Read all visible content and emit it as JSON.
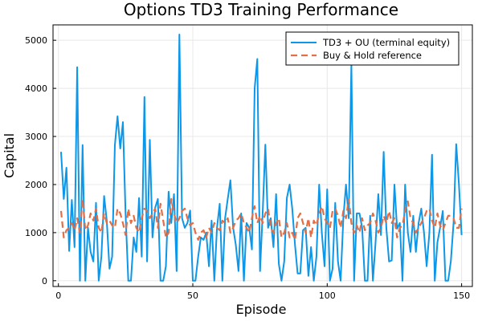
{
  "chart_data": {
    "type": "line",
    "title": "Options TD3 Training Performance",
    "xlabel": "Episode",
    "ylabel": "Capital",
    "xlim": [
      -2,
      154
    ],
    "ylim": [
      -120,
      5320
    ],
    "xticks": [
      0,
      50,
      100,
      150
    ],
    "yticks": [
      0,
      1000,
      2000,
      3000,
      4000,
      5000
    ],
    "grid": true,
    "legend_position": "top-right",
    "series": [
      {
        "name": "TD3 + OU (terminal equity)",
        "style": "solid",
        "color": "#0d97e8",
        "x": [
          1,
          2,
          3,
          4,
          5,
          6,
          7,
          8,
          9,
          10,
          11,
          12,
          13,
          14,
          15,
          16,
          17,
          18,
          19,
          20,
          21,
          22,
          23,
          24,
          25,
          26,
          27,
          28,
          29,
          30,
          31,
          32,
          33,
          34,
          35,
          36,
          37,
          38,
          39,
          40,
          41,
          42,
          43,
          44,
          45,
          46,
          47,
          48,
          49,
          50,
          51,
          52,
          53,
          54,
          55,
          56,
          57,
          58,
          59,
          60,
          61,
          62,
          63,
          64,
          65,
          66,
          67,
          68,
          69,
          70,
          71,
          72,
          73,
          74,
          75,
          76,
          77,
          78,
          79,
          80,
          81,
          82,
          83,
          84,
          85,
          86,
          87,
          88,
          89,
          90,
          91,
          92,
          93,
          94,
          95,
          96,
          97,
          98,
          99,
          100,
          101,
          102,
          103,
          104,
          105,
          106,
          107,
          108,
          109,
          110,
          111,
          112,
          113,
          114,
          115,
          116,
          117,
          118,
          119,
          120,
          121,
          122,
          123,
          124,
          125,
          126,
          127,
          128,
          129,
          130,
          131,
          132,
          133,
          134,
          135,
          136,
          137,
          138,
          139,
          140,
          141,
          142,
          143,
          144,
          145,
          146,
          147,
          148,
          149,
          150
        ],
        "y": [
          2680,
          1700,
          2350,
          620,
          1680,
          700,
          4440,
          0,
          2820,
          0,
          1100,
          600,
          400,
          1620,
          0,
          500,
          1760,
          1250,
          250,
          500,
          2820,
          3420,
          2750,
          3300,
          1400,
          0,
          0,
          900,
          600,
          1720,
          500,
          3820,
          400,
          2930,
          900,
          1520,
          1700,
          0,
          0,
          300,
          1850,
          1200,
          1800,
          200,
          5120,
          1300,
          1100,
          1200,
          1460,
          0,
          0,
          500,
          900,
          850,
          1000,
          300,
          1250,
          0,
          1100,
          1600,
          0,
          1300,
          1700,
          2090,
          1100,
          750,
          200,
          1400,
          0,
          1200,
          1100,
          650,
          4000,
          4610,
          200,
          1420,
          2830,
          1100,
          1300,
          700,
          1800,
          350,
          0,
          400,
          1720,
          2000,
          1500,
          750,
          150,
          150,
          1050,
          1100,
          100,
          700,
          0,
          500,
          2000,
          1000,
          300,
          1900,
          0,
          250,
          1620,
          400,
          0,
          1300,
          2000,
          1300,
          4500,
          0,
          1400,
          1400,
          1100,
          0,
          0,
          1350,
          0,
          800,
          1800,
          950,
          2680,
          1100,
          400,
          420,
          2000,
          1080,
          1200,
          0,
          2000,
          1000,
          600,
          1350,
          600,
          1200,
          1500,
          1000,
          300,
          1000,
          2620,
          0,
          800,
          1100,
          1450,
          0,
          0,
          400,
          1200,
          2840,
          2000,
          950
        ]
      },
      {
        "name": "Buy & Hold reference",
        "style": "dashed",
        "color": "#e26f46",
        "x": [
          1,
          2,
          3,
          4,
          5,
          6,
          7,
          8,
          9,
          10,
          11,
          12,
          13,
          14,
          15,
          16,
          17,
          18,
          19,
          20,
          21,
          22,
          23,
          24,
          25,
          26,
          27,
          28,
          29,
          30,
          31,
          32,
          33,
          34,
          35,
          36,
          37,
          38,
          39,
          40,
          41,
          42,
          43,
          44,
          45,
          46,
          47,
          48,
          49,
          50,
          51,
          52,
          53,
          54,
          55,
          56,
          57,
          58,
          59,
          60,
          61,
          62,
          63,
          64,
          65,
          66,
          67,
          68,
          69,
          70,
          71,
          72,
          73,
          74,
          75,
          76,
          77,
          78,
          79,
          80,
          81,
          82,
          83,
          84,
          85,
          86,
          87,
          88,
          89,
          90,
          91,
          92,
          93,
          94,
          95,
          96,
          97,
          98,
          99,
          100,
          101,
          102,
          103,
          104,
          105,
          106,
          107,
          108,
          109,
          110,
          111,
          112,
          113,
          114,
          115,
          116,
          117,
          118,
          119,
          120,
          121,
          122,
          123,
          124,
          125,
          126,
          127,
          128,
          129,
          130,
          131,
          132,
          133,
          134,
          135,
          136,
          137,
          138,
          139,
          140,
          141,
          142,
          143,
          144,
          145,
          146,
          147,
          148,
          149,
          150
        ],
        "y": [
          1450,
          900,
          1050,
          1100,
          1200,
          1050,
          1300,
          1000,
          1700,
          1050,
          1150,
          1400,
          1250,
          1500,
          1100,
          1000,
          1400,
          1200,
          1250,
          1150,
          1100,
          1500,
          1400,
          1200,
          950,
          1500,
          1200,
          1350,
          1100,
          1000,
          1300,
          1500,
          1450,
          1300,
          1400,
          1500,
          1100,
          1600,
          1250,
          900,
          1000,
          1700,
          1400,
          1200,
          1300,
          1450,
          1500,
          1300,
          1150,
          1200,
          1000,
          850,
          1000,
          1050,
          900,
          1100,
          1000,
          1200,
          1100,
          1050,
          1250,
          1200,
          1300,
          1000,
          1100,
          1250,
          1300,
          1400,
          1200,
          1100,
          1000,
          1300,
          1550,
          1200,
          1350,
          1200,
          1400,
          1500,
          1100,
          1000,
          1200,
          1300,
          900,
          1000,
          1200,
          900,
          1000,
          850,
          1300,
          1400,
          1200,
          1000,
          1300,
          900,
          1250,
          1150,
          1400,
          1550,
          1300,
          1200,
          1100,
          1450,
          1500,
          1350,
          1100,
          1450,
          1300,
          1700,
          1200,
          1000,
          1150,
          1000,
          1300,
          1050,
          1150,
          1200,
          1400,
          1250,
          1000,
          1100,
          1350,
          1200,
          1450,
          1200,
          1300,
          900,
          1100,
          1150,
          1450,
          1650,
          1300,
          1200,
          1000,
          1100,
          1200,
          1300,
          1450,
          1500,
          1250,
          1100,
          1400,
          1150,
          1050,
          1200,
          1350,
          1350,
          1300,
          1100,
          1100,
          1500
        ]
      }
    ]
  }
}
